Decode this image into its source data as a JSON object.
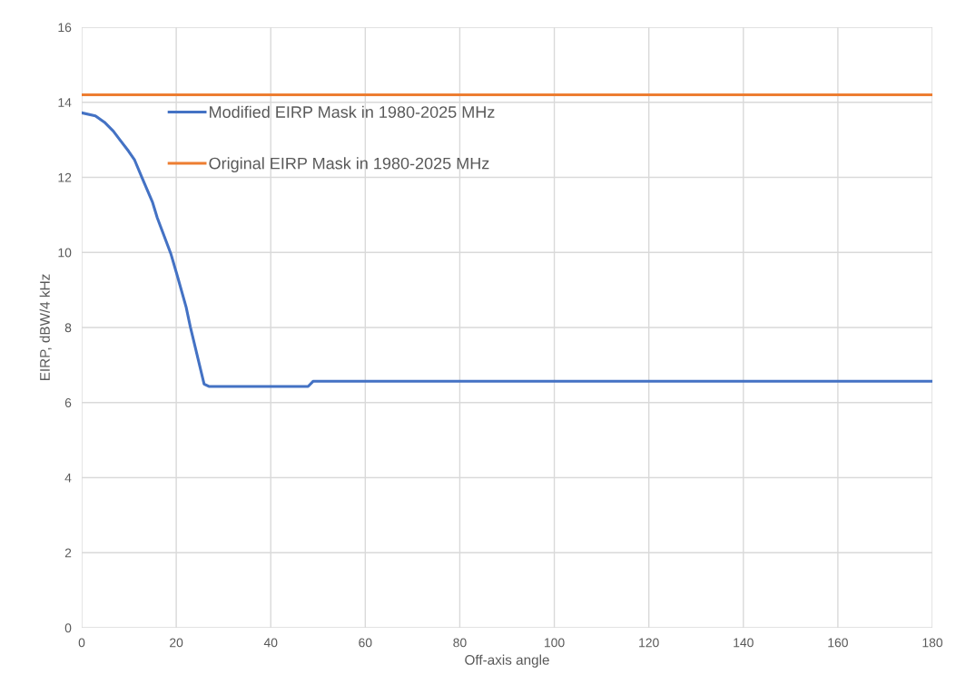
{
  "chart_data": {
    "type": "line",
    "xlabel": "Off-axis angle",
    "ylabel": "EIRP, dBW/4 kHz",
    "xlim": [
      0,
      180
    ],
    "xticks": [
      0,
      20,
      40,
      60,
      80,
      100,
      120,
      140,
      160,
      180
    ],
    "ylim": [
      0,
      16
    ],
    "yticks": [
      0,
      2,
      4,
      6,
      8,
      10,
      12,
      14,
      16
    ],
    "grid": true,
    "legend": "top left",
    "marker": "none",
    "line_style": "solid",
    "series": [
      {
        "name": "Modified EIRP Mask in 1980-2025 MHz",
        "color": "#4472c4",
        "x": [
          0,
          2.9,
          4.8,
          6.7,
          8.0,
          9.9,
          11.2,
          12.8,
          15.0,
          16.0,
          18.9,
          20.2,
          22.1,
          23.0,
          25.9,
          26.9,
          47.9,
          49.0,
          180
        ],
        "values": [
          13.72,
          13.64,
          13.47,
          13.23,
          13.01,
          12.7,
          12.46,
          11.98,
          11.33,
          10.92,
          9.95,
          9.39,
          8.54,
          8.01,
          6.49,
          6.43,
          6.43,
          6.57,
          6.57
        ]
      },
      {
        "name": "Original EIRP Mask in 1980-2025 MHz",
        "color": "#ed7d31",
        "x": [
          0,
          180
        ],
        "values": [
          14.2,
          14.2
        ]
      }
    ]
  }
}
